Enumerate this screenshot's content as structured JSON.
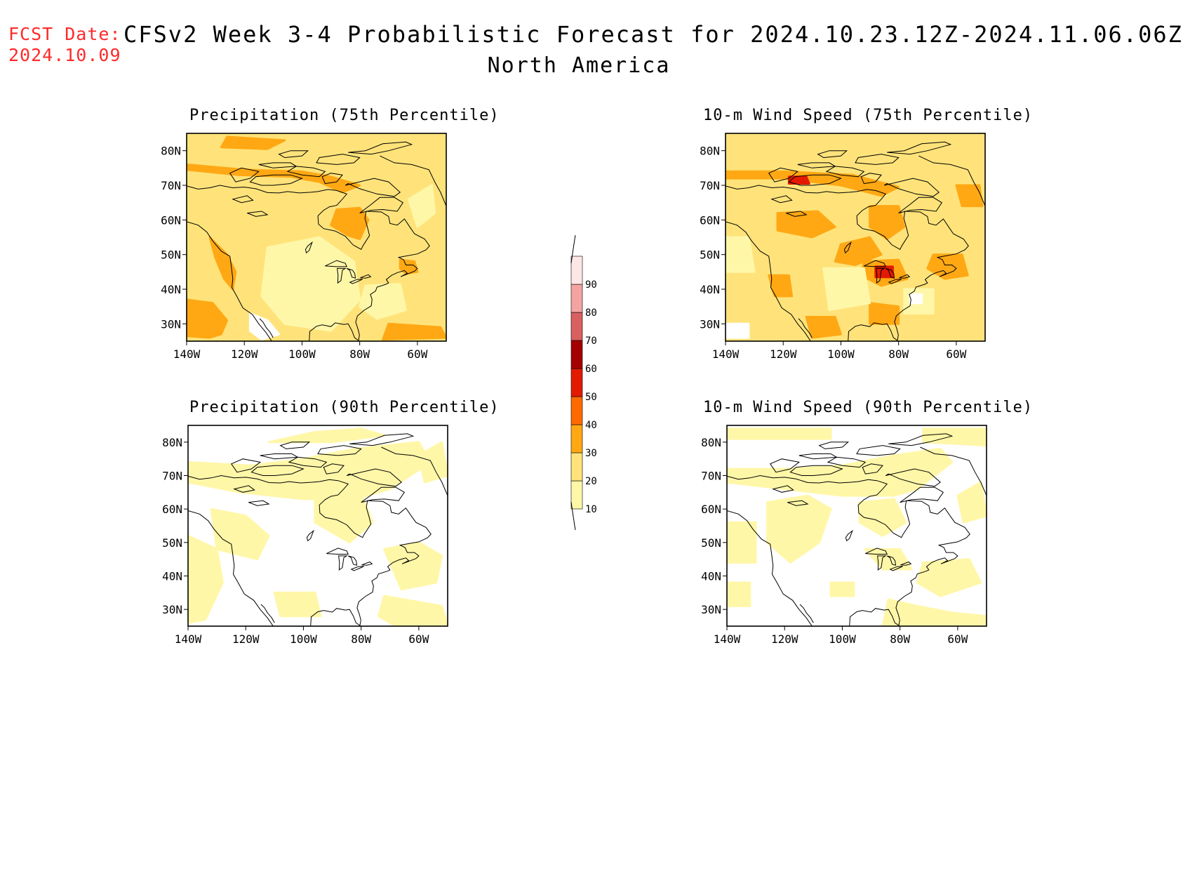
{
  "header": {
    "fcst_label": "FCST Date:",
    "fcst_date": "2024.10.09",
    "title": "CFSv2 Week 3-4 Probabilistic Forecast for 2024.10.23.12Z-2024.11.06.06Z",
    "region": "North America"
  },
  "panels": [
    {
      "id": "p1",
      "title": "Precipitation (75th Percentile)"
    },
    {
      "id": "p2",
      "title": "10-m Wind Speed (75th Percentile)"
    },
    {
      "id": "p3",
      "title": "Precipitation (90th Percentile)"
    },
    {
      "id": "p4",
      "title": "10-m Wind Speed (90th Percentile)"
    }
  ],
  "axes": {
    "lat_labels": [
      "80N",
      "70N",
      "60N",
      "50N",
      "40N",
      "30N"
    ],
    "lon_labels": [
      "140W",
      "120W",
      "100W",
      "80W",
      "60W"
    ],
    "lat_values": [
      80,
      70,
      60,
      50,
      40,
      30
    ],
    "lon_values": [
      -140,
      -120,
      -100,
      -80,
      -60
    ],
    "lat_range": [
      25,
      85
    ],
    "lon_range": [
      -140,
      -50
    ]
  },
  "colorbar": {
    "levels": [
      "10",
      "20",
      "30",
      "40",
      "50",
      "60",
      "70",
      "80",
      "90"
    ],
    "colors": [
      "#fff7a8",
      "#ffe37a",
      "#ffa814",
      "#ff6a00",
      "#e31a00",
      "#a50000",
      "#d96060",
      "#f4a3a3",
      "#fde6e6"
    ]
  },
  "colors": {
    "fcst_red": "#ff2a2a",
    "base_75": "#ffe37a",
    "light": "#fff7a8",
    "orange": "#ffa814",
    "dark_orange": "#ff6a00",
    "red": "#e31a00"
  }
}
